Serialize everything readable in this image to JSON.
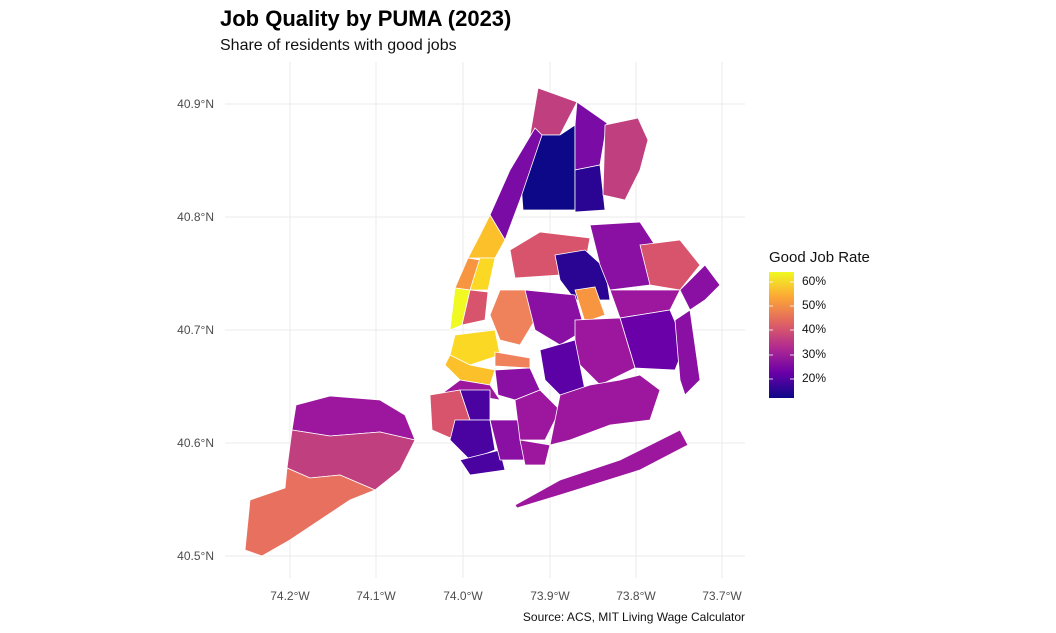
{
  "title": "Job Quality by PUMA (2023)",
  "subtitle": "Share of residents with good jobs",
  "caption": "Source: ACS, MIT Living Wage Calculator",
  "x_axis": {
    "ticks": [
      "74.2°W",
      "74.1°W",
      "74.0°W",
      "73.9°W",
      "73.8°W",
      "73.7°W"
    ]
  },
  "y_axis": {
    "ticks": [
      "40.9°N",
      "40.8°N",
      "40.7°N",
      "40.6°N",
      "40.5°N"
    ]
  },
  "legend": {
    "title": "Good Job Rate",
    "labels": [
      "60%",
      "50%",
      "40%",
      "30%",
      "20%"
    ],
    "palette": "plasma",
    "colors": [
      "#f0f921",
      "#f89540",
      "#cc4778",
      "#9c179e",
      "#5c01a6",
      "#0d0887"
    ]
  },
  "chart_data": {
    "type": "choropleth",
    "title": "Job Quality by PUMA (2023)",
    "subtitle": "Share of residents with good jobs",
    "fill_variable": "Good Job Rate",
    "range_percent": [
      15,
      63
    ],
    "grid": true,
    "legend_position": "right"
  }
}
